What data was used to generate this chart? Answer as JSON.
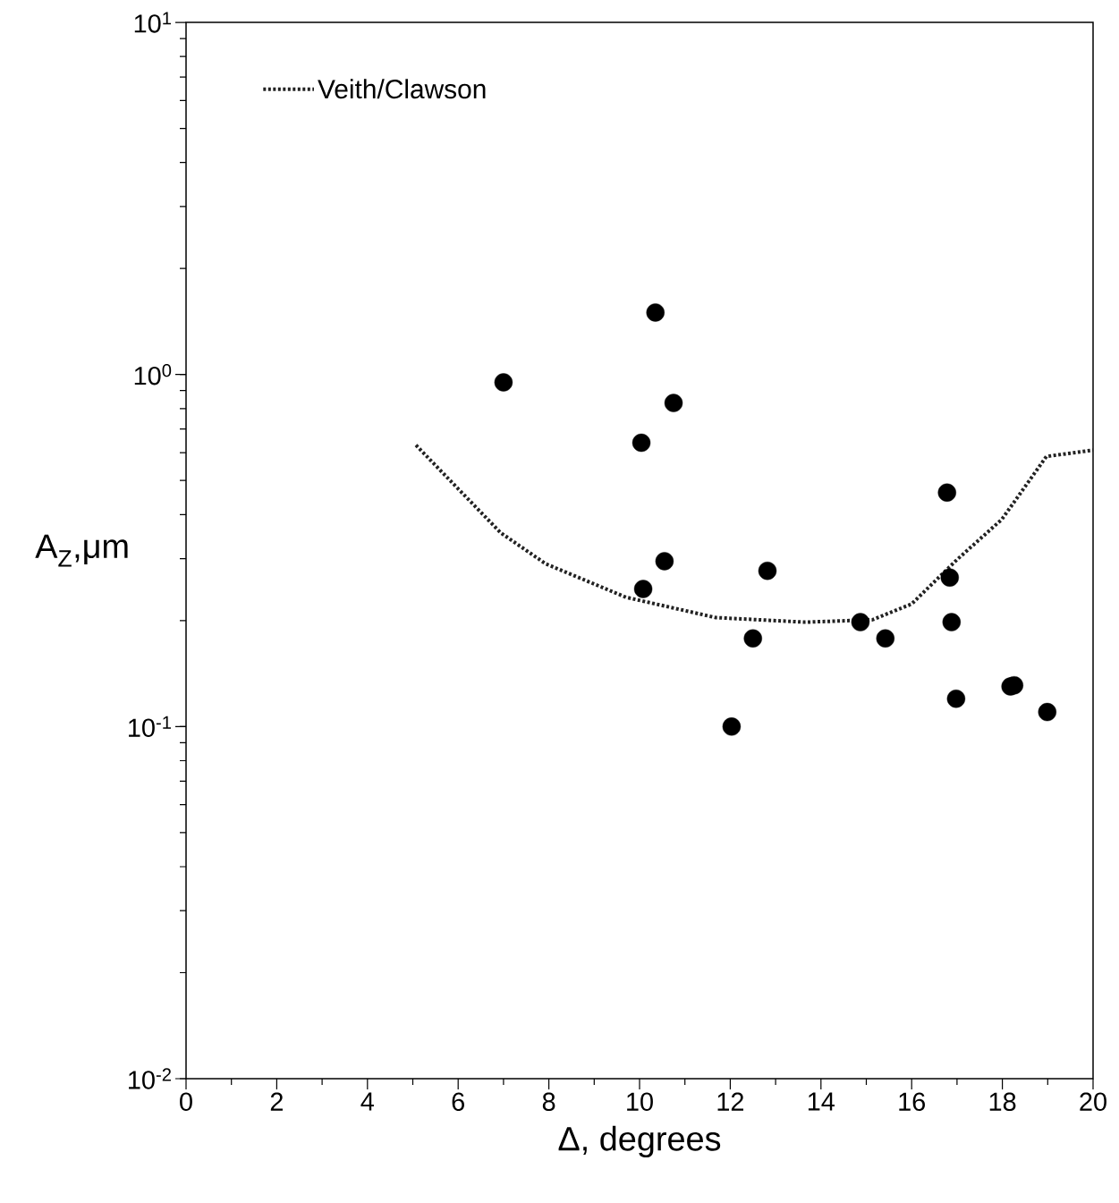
{
  "chart_data": {
    "type": "scatter",
    "xlabel": "Δ, degrees",
    "ylabel": "A$_{Z}$,μm",
    "xlim": [
      0,
      20
    ],
    "xticks": [
      0,
      2,
      4,
      6,
      8,
      10,
      12,
      14,
      16,
      18,
      20
    ],
    "ylim": [
      0.01,
      10
    ],
    "log": "y",
    "yticks": [
      {
        "value": 0.01,
        "label": "10$^{-2}$"
      },
      {
        "value": 0.1,
        "label": "10$^{-1}$"
      },
      {
        "value": 1,
        "label": "10$^{0}$"
      },
      {
        "value": 10,
        "label": "10$^{1}$"
      }
    ],
    "marker": "circle",
    "legend": "top left",
    "series": [
      {
        "color": "#000000",
        "x": [
          7.0,
          10.35,
          10.75,
          10.04,
          10.55,
          10.08,
          12.82,
          12.5,
          12.03,
          14.87,
          15.42,
          16.78,
          16.84,
          16.88,
          16.98,
          18.18,
          18.26,
          18.99
        ],
        "values": [
          0.95,
          1.5,
          0.83,
          0.64,
          0.295,
          0.246,
          0.277,
          0.178,
          0.1,
          0.198,
          0.178,
          0.462,
          0.265,
          0.198,
          0.12,
          0.13,
          0.131,
          0.11
        ]
      },
      {
        "type": "line",
        "name": "Veith/Clawson",
        "color": "#222222",
        "line_style": "dotted",
        "marker": "none",
        "x": [
          5.07,
          6.94,
          7.93,
          9.7,
          11.68,
          13.65,
          15.13,
          16.0,
          17.0,
          17.99,
          18.97,
          20.0
        ],
        "values": [
          0.63,
          0.355,
          0.29,
          0.233,
          0.204,
          0.198,
          0.201,
          0.223,
          0.298,
          0.388,
          0.585,
          0.61
        ]
      }
    ]
  }
}
